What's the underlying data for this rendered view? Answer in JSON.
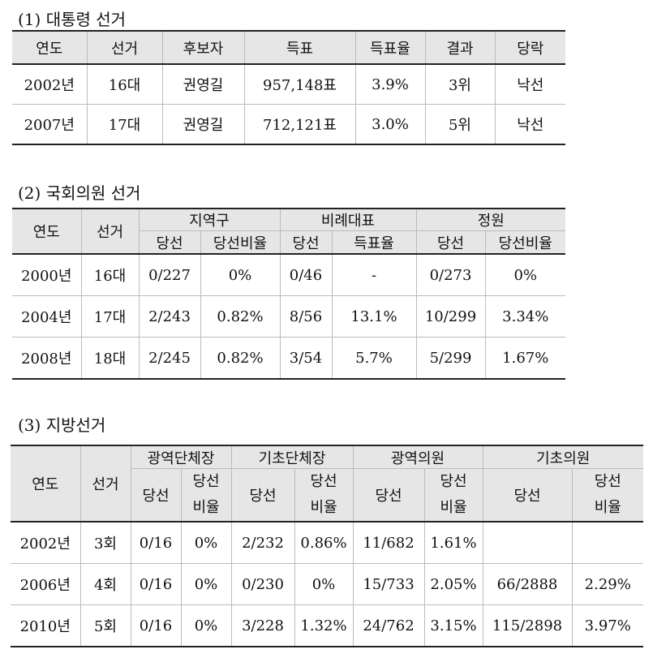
{
  "s1": {
    "title": "(1) 대통령 선거",
    "headers": [
      "연도",
      "선거",
      "후보자",
      "득표",
      "득표율",
      "결과",
      "당락"
    ],
    "rows": [
      [
        "2002년",
        "16대",
        "권영길",
        "957,148표",
        "3.9%",
        "3위",
        "낙선"
      ],
      [
        "2007년",
        "17대",
        "권영길",
        "712,121표",
        "3.0%",
        "5위",
        "낙선"
      ]
    ]
  },
  "s2": {
    "title": "(2) 국회의원 선거",
    "h_year": "연도",
    "h_elec": "선거",
    "groups": [
      "지역구",
      "비례대표",
      "정원"
    ],
    "sub": [
      "당선",
      "당선비율",
      "당선",
      "득표율",
      "당선",
      "당선비율"
    ],
    "rows": [
      [
        "2000년",
        "16대",
        "0/227",
        "0%",
        "0/46",
        "-",
        "0/273",
        "0%"
      ],
      [
        "2004년",
        "17대",
        "2/243",
        "0.82%",
        "8/56",
        "13.1%",
        "10/299",
        "3.34%"
      ],
      [
        "2008년",
        "18대",
        "2/245",
        "0.82%",
        "3/54",
        "5.7%",
        "5/299",
        "1.67%"
      ]
    ]
  },
  "s3": {
    "title": "(3) 지방선거",
    "h_year": "연도",
    "h_elec": "선거",
    "groups": [
      "광역단체장",
      "기초단체장",
      "광역의원",
      "기초의원"
    ],
    "win": "당선",
    "ratio_a": "당선",
    "ratio_b": "비율",
    "rows": [
      [
        "2002년",
        "3회",
        "0/16",
        "0%",
        "2/232",
        "0.86%",
        "11/682",
        "1.61%",
        "",
        ""
      ],
      [
        "2006년",
        "4회",
        "0/16",
        "0%",
        "0/230",
        "0%",
        "15/733",
        "2.05%",
        "66/2888",
        "2.29%"
      ],
      [
        "2010년",
        "5회",
        "0/16",
        "0%",
        "3/228",
        "1.32%",
        "24/762",
        "3.15%",
        "115/2898",
        "3.97%"
      ]
    ]
  }
}
